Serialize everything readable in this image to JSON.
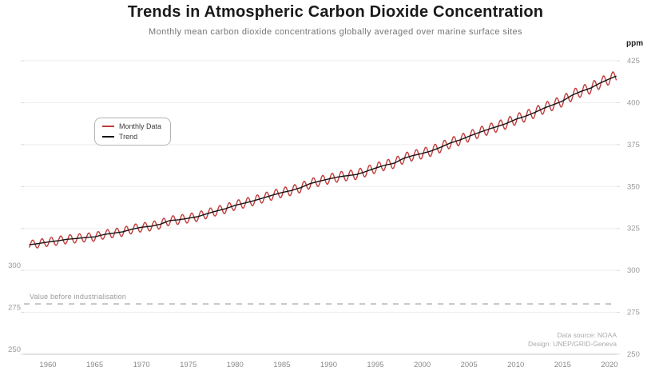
{
  "header": {
    "title": "Trends in Atmospheric Carbon Dioxide Concentration",
    "subtitle": "Monthly mean carbon dioxide concentrations globally averaged over marine surface sites"
  },
  "axis": {
    "unit_label": "ppm"
  },
  "legend": {
    "items": [
      {
        "label": "Monthly Data",
        "color": "#c23b3b"
      },
      {
        "label": "Trend",
        "color": "#141414"
      }
    ]
  },
  "annotation": {
    "label": "Value before industrialisation"
  },
  "attribution": {
    "line1": "Data source: NOAA",
    "line2": "Design: UNEP/GRID-Geneva"
  },
  "chart_data": {
    "type": "line",
    "title": "Trends in Atmospheric Carbon Dioxide Concentration",
    "subtitle": "Monthly mean carbon dioxide concentrations globally averaged over marine surface sites",
    "xlabel": "",
    "ylabel": "ppm",
    "grid": "horizontal-only",
    "legend_position": "inside-upper-left",
    "xlim": [
      1957.44,
      2020.78
    ],
    "ylim": [
      250,
      430
    ],
    "xticks": [
      1960,
      1965,
      1970,
      1975,
      1980,
      1985,
      1990,
      1995,
      2000,
      2005,
      2010,
      2015,
      2020
    ],
    "yticks": [
      250,
      275,
      300,
      325,
      350,
      375,
      400,
      425
    ],
    "yticks_left_visible": [
      300,
      275,
      250
    ],
    "tick_color": "#999999",
    "gridline_color": "#ededed",
    "axisline_color": "#c4c4c4",
    "annotation": {
      "label": "Value before industrialisation",
      "value_ppm": 280,
      "line_style": "dashed",
      "line_color": "#9a9a9a"
    },
    "series": [
      {
        "name": "Monthly Data",
        "color": "#c23b3b",
        "note": "monthly values = interpolated annual trend + seasonal cycle",
        "seasonal_amplitude_ppm_start": 2.55,
        "seasonal_amplitude_ppm_end": 3.4,
        "seasonal_peak_month_fraction": 0.37,
        "x_start": 1958.0,
        "x_end": 2020.75,
        "step_years": 0.08333
      },
      {
        "name": "Trend",
        "color": "#141414",
        "years_start": 1958,
        "annual_ppm": [
          315.3,
          316.0,
          316.9,
          317.6,
          318.5,
          319.0,
          319.6,
          320.0,
          321.4,
          322.2,
          323.0,
          324.6,
          325.7,
          326.3,
          327.5,
          329.7,
          330.2,
          331.1,
          332.0,
          333.8,
          335.4,
          336.8,
          338.8,
          340.1,
          341.5,
          343.2,
          344.9,
          346.4,
          347.6,
          349.3,
          351.7,
          353.2,
          354.5,
          355.7,
          356.5,
          357.2,
          359.0,
          361.0,
          362.7,
          363.9,
          366.8,
          368.5,
          369.7,
          371.3,
          373.5,
          376.0,
          377.7,
          380.0,
          382.1,
          384.0,
          385.8,
          387.6,
          390.1,
          391.9,
          394.1,
          396.7,
          398.8,
          401.0,
          404.4,
          406.8,
          408.7,
          411.7,
          414.2,
          416.4
        ]
      }
    ]
  }
}
